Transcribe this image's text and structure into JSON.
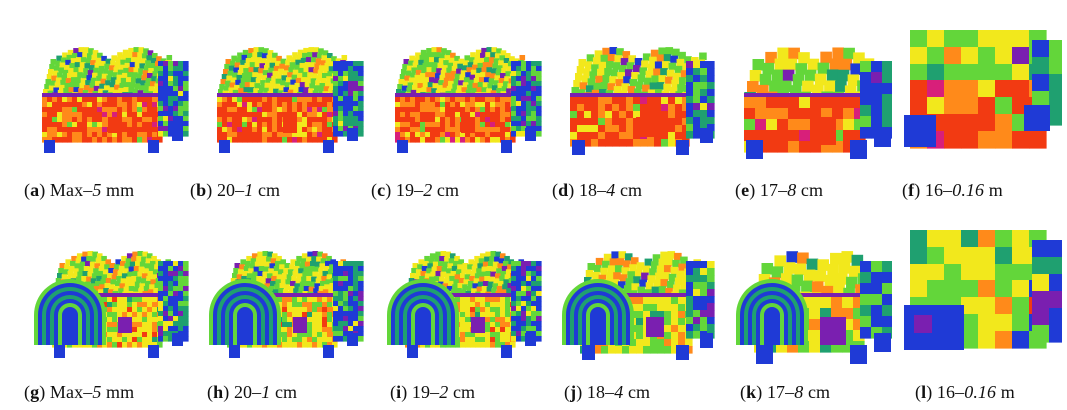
{
  "figure": {
    "row1": [
      {
        "letter": "a",
        "a": "Max–",
        "b": "5",
        "c": " mm",
        "detail": "fine",
        "style": "front"
      },
      {
        "letter": "b",
        "a": "20–",
        "b": "1",
        "c": " cm",
        "detail": "fine",
        "style": "front"
      },
      {
        "letter": "c",
        "a": "19–",
        "b": "2",
        "c": " cm",
        "detail": "fine",
        "style": "front"
      },
      {
        "letter": "d",
        "a": "18–",
        "b": "4",
        "c": " cm",
        "detail": "medium",
        "style": "front"
      },
      {
        "letter": "e",
        "a": "17–",
        "b": "8",
        "c": " cm",
        "detail": "coarse",
        "style": "front"
      },
      {
        "letter": "f",
        "a": "16–",
        "b": "0.16",
        "c": " m",
        "detail": "blocky",
        "style": "front"
      }
    ],
    "row2": [
      {
        "letter": "g",
        "a": "Max–",
        "b": "5",
        "c": " mm",
        "detail": "fine",
        "style": "side"
      },
      {
        "letter": "h",
        "a": "20–",
        "b": "1",
        "c": " cm",
        "detail": "fine",
        "style": "side"
      },
      {
        "letter": "i",
        "a": "19–",
        "b": "2",
        "c": " cm",
        "detail": "fine",
        "style": "side"
      },
      {
        "letter": "j",
        "a": "18–",
        "b": "4",
        "c": " cm",
        "detail": "medium",
        "style": "side"
      },
      {
        "letter": "k",
        "a": "17–",
        "b": "8",
        "c": " cm",
        "detail": "coarse",
        "style": "side"
      },
      {
        "letter": "l",
        "a": "16–",
        "b": "0.16",
        "c": " m",
        "detail": "blocky",
        "style": "side"
      }
    ],
    "colors": {
      "red": "#f23a12",
      "orange": "#ff8a1a",
      "yellow": "#f2e81c",
      "green": "#63d63a",
      "teal": "#1fa070",
      "blue": "#1f3ad6",
      "purple": "#7a1fb0",
      "magenta": "#d81f7a"
    }
  }
}
